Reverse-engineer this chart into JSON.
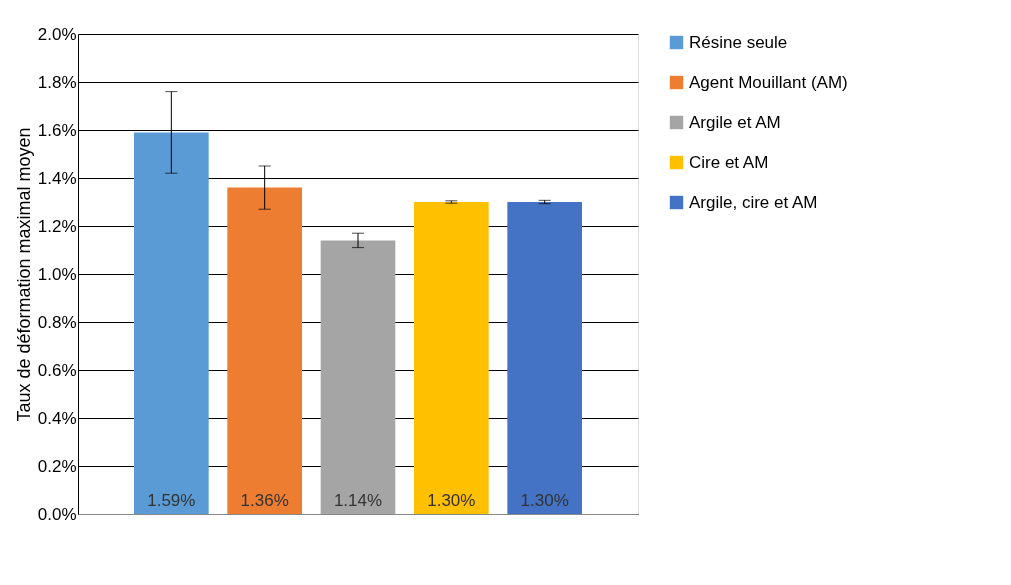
{
  "chart_data": {
    "type": "bar",
    "ylabel": "Taux de déformation maximal moyen",
    "categories": [
      null
    ],
    "series": [
      {
        "name": "Résine seule",
        "color": "#5b9bd5",
        "values": [
          1.59
        ],
        "errors": [
          0.17
        ],
        "value_labels": [
          "1.59%"
        ]
      },
      {
        "name": "Agent Mouillant (AM)",
        "color": "#ed7d31",
        "values": [
          1.36
        ],
        "errors": [
          0.09
        ],
        "value_labels": [
          "1.36%"
        ]
      },
      {
        "name": "Argile et AM",
        "color": "#a5a5a5",
        "values": [
          1.14
        ],
        "errors": [
          0.03
        ],
        "value_labels": [
          "1.14%"
        ]
      },
      {
        "name": "Cire et AM",
        "color": "#ffc000",
        "values": [
          1.3
        ],
        "errors": [
          0.005
        ],
        "value_labels": [
          "1.30%"
        ]
      },
      {
        "name": "Argile, cire et AM",
        "color": "#4472c4",
        "values": [
          1.3
        ],
        "errors": [
          0.007
        ],
        "value_labels": [
          "1.30%"
        ]
      }
    ],
    "ylim": [
      0,
      2.0
    ],
    "yticks": [
      {
        "value": 0,
        "label": "0.0%"
      },
      {
        "value": 0.2,
        "label": "0.2%"
      },
      {
        "value": 0.4,
        "label": "0.4%"
      },
      {
        "value": 0.6,
        "label": "0.6%"
      },
      {
        "value": 0.8,
        "label": "0.8%"
      },
      {
        "value": 1.0,
        "label": "1.0%"
      },
      {
        "value": 1.2,
        "label": "1.2%"
      },
      {
        "value": 1.4,
        "label": "1.4%"
      },
      {
        "value": 1.6,
        "label": "1.6%"
      },
      {
        "value": 1.8,
        "label": "1.8%"
      },
      {
        "value": 2.0,
        "label": "2.0%"
      }
    ],
    "grid": "y",
    "legend": "right"
  }
}
